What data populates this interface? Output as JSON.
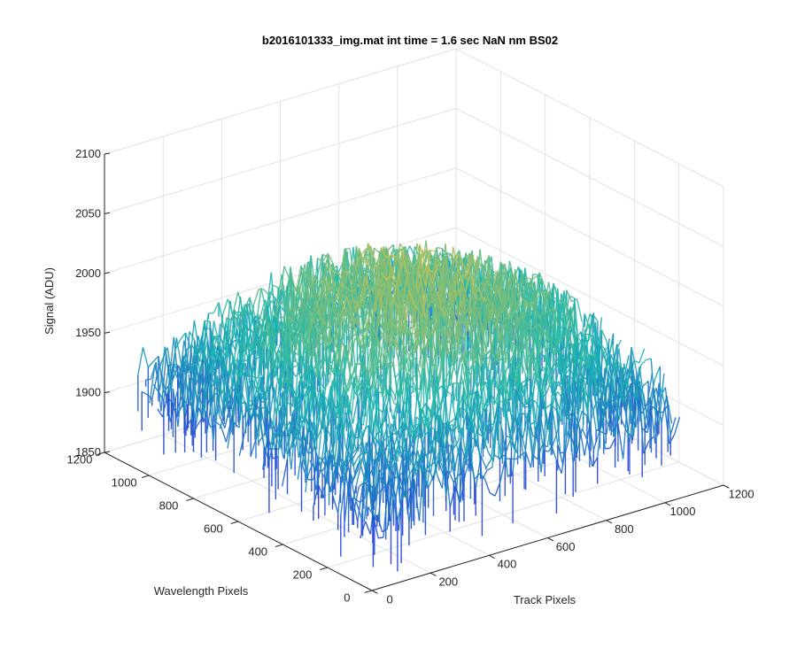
{
  "chart_data": {
    "type": "surface3d",
    "title": "b2016101333_img.mat int time = 1.6 sec  NaN nm BS02",
    "xlabel": "Track Pixels",
    "ylabel": "Wavelength Pixels",
    "zlabel": "Signal (ADU)",
    "xlim": [
      0,
      1200
    ],
    "ylim": [
      0,
      1200
    ],
    "zlim": [
      1850,
      2100
    ],
    "xticks": [
      0,
      200,
      400,
      600,
      800,
      1000,
      1200
    ],
    "yticks": [
      0,
      200,
      400,
      600,
      800,
      1000,
      1200
    ],
    "zticks": [
      1850,
      1900,
      1950,
      2000,
      2050,
      2100
    ],
    "data_extent": {
      "x": [
        0,
        1050
      ],
      "y": [
        0,
        1050
      ]
    },
    "grid": true,
    "colormap": "parula",
    "colors": {
      "low": "#1f3fd8",
      "mid": "#1bb8b0",
      "high": "#e3c240"
    },
    "surface_profile": {
      "description": "noisy detector image, baseline near 1925 ADU with a broad raised region up to about 2000 ADU",
      "x": [
        0,
        150,
        300,
        450,
        600,
        750,
        900,
        1050
      ],
      "y": [
        0,
        150,
        300,
        450,
        600,
        750,
        900,
        1050
      ],
      "z": [
        [
          1915,
          1920,
          1925,
          1928,
          1930,
          1928,
          1925,
          1920
        ],
        [
          1920,
          1930,
          1945,
          1955,
          1960,
          1955,
          1945,
          1930
        ],
        [
          1925,
          1945,
          1965,
          1980,
          1985,
          1978,
          1962,
          1940
        ],
        [
          1928,
          1952,
          1978,
          1995,
          2000,
          1992,
          1975,
          1948
        ],
        [
          1930,
          1955,
          1982,
          1998,
          2002,
          1995,
          1978,
          1950
        ],
        [
          1928,
          1950,
          1975,
          1990,
          1995,
          1988,
          1970,
          1945
        ],
        [
          1925,
          1942,
          1962,
          1975,
          1980,
          1972,
          1958,
          1938
        ],
        [
          1920,
          1932,
          1945,
          1955,
          1958,
          1952,
          1942,
          1928
        ]
      ],
      "noise_amplitude": 30
    }
  }
}
